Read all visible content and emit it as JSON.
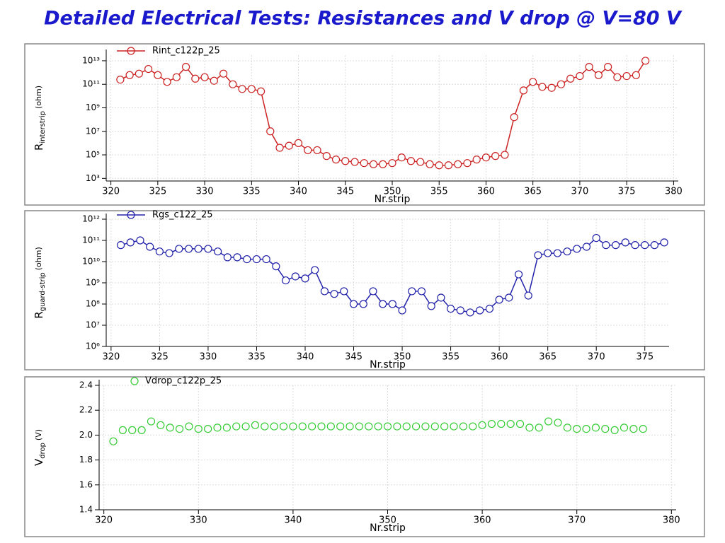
{
  "title": "Detailed Electrical Tests: Resistances and V drop @ V=80 V",
  "chart_data": [
    {
      "type": "line",
      "log": true,
      "grid": true,
      "legend": "top-left",
      "marker": "circle",
      "x_label": "Nr.strip",
      "y_label": "R",
      "y_label_sub": "interstrip",
      "y_label_unit": "(ohm)",
      "xlim": [
        319.5,
        380.5
      ],
      "xticks": [
        320,
        325,
        330,
        335,
        340,
        345,
        350,
        355,
        360,
        365,
        370,
        375,
        380
      ],
      "ylim": [
        600,
        30000000000000
      ],
      "yticks": [
        {
          "value": 1000,
          "label": "10³"
        },
        {
          "value": 100000,
          "label": "10⁵"
        },
        {
          "value": 10000000,
          "label": "10⁷"
        },
        {
          "value": 1000000000,
          "label": "10⁹"
        },
        {
          "value": 100000000000,
          "label": "10¹¹"
        },
        {
          "value": 10000000000000,
          "label": "10¹³"
        }
      ],
      "x": [
        321,
        322,
        323,
        324,
        325,
        326,
        327,
        328,
        329,
        330,
        331,
        332,
        333,
        334,
        335,
        336,
        337,
        338,
        339,
        340,
        341,
        342,
        343,
        344,
        345,
        346,
        347,
        348,
        349,
        350,
        351,
        352,
        353,
        354,
        355,
        356,
        357,
        358,
        359,
        360,
        361,
        362,
        363,
        364,
        365,
        366,
        367,
        368,
        369,
        370,
        371,
        372,
        373,
        374,
        375,
        376,
        377
      ],
      "series": [
        {
          "name": "Rint_c122p_25",
          "color": "#cc2222",
          "values": [
            250000000000.0,
            600000000000.0,
            800000000000.0,
            2000000000000.0,
            600000000000.0,
            160000000000.0,
            400000000000.0,
            3000000000000.0,
            300000000000.0,
            400000000000.0,
            200000000000.0,
            800000000000.0,
            100000000000.0,
            40000000000.0,
            40000000000.0,
            25000000000.0,
            10000000.0,
            400000.0,
            600000.0,
            1000000.0,
            250000.0,
            250000.0,
            80000.0,
            40000.0,
            30000.0,
            25000.0,
            20000.0,
            16000.0,
            16000.0,
            20000.0,
            60000.0,
            30000.0,
            25000.0,
            16000.0,
            13000.0,
            13000.0,
            16000.0,
            20000.0,
            40000.0,
            60000.0,
            80000.0,
            100000.0,
            160000000.0,
            30000000000.0,
            160000000000.0,
            60000000000.0,
            50000000000.0,
            100000000000.0,
            300000000000.0,
            500000000000.0,
            3000000000000.0,
            600000000000.0,
            3000000000000.0,
            400000000000.0,
            500000000000.0,
            600000000000.0,
            10000000000000.0
          ]
        }
      ]
    },
    {
      "type": "line",
      "log": true,
      "grid": true,
      "legend": "top-left",
      "marker": "circle",
      "x_label": "Nr.strip",
      "y_label": "R",
      "y_label_sub": "guard-strip",
      "y_label_unit": "(ohm)",
      "xlim": [
        319.5,
        377.5
      ],
      "xticks": [
        320,
        325,
        330,
        335,
        340,
        345,
        350,
        355,
        360,
        365,
        370,
        375
      ],
      "ylim": [
        1000000,
        1000000000000
      ],
      "yticks": [
        {
          "value": 1000000,
          "label": "10⁶"
        },
        {
          "value": 10000000,
          "label": "10⁷"
        },
        {
          "value": 100000000,
          "label": "10⁸"
        },
        {
          "value": 1000000000,
          "label": "10⁹"
        },
        {
          "value": 10000000000,
          "label": "10¹⁰"
        },
        {
          "value": 100000000000,
          "label": "10¹¹"
        },
        {
          "value": 1000000000000,
          "label": "10¹²"
        }
      ],
      "x": [
        321,
        322,
        323,
        324,
        325,
        326,
        327,
        328,
        329,
        330,
        331,
        332,
        333,
        334,
        335,
        336,
        337,
        338,
        339,
        340,
        341,
        342,
        343,
        344,
        345,
        346,
        347,
        348,
        349,
        350,
        351,
        352,
        353,
        354,
        355,
        356,
        357,
        358,
        359,
        360,
        361,
        362,
        363,
        364,
        365,
        366,
        367,
        368,
        369,
        370,
        371,
        372,
        373,
        374,
        375,
        376,
        377
      ],
      "series": [
        {
          "name": "Rgs_c122_25",
          "color": "#2222aa",
          "values": [
            60000000000.0,
            80000000000.0,
            100000000000.0,
            50000000000.0,
            30000000000.0,
            25000000000.0,
            40000000000.0,
            40000000000.0,
            40000000000.0,
            40000000000.0,
            30000000000.0,
            16000000000.0,
            16000000000.0,
            13000000000.0,
            13000000000.0,
            13000000000.0,
            6000000000.0,
            1300000000.0,
            2000000000.0,
            1600000000.0,
            4000000000.0,
            400000000.0,
            300000000.0,
            400000000.0,
            100000000.0,
            100000000.0,
            400000000.0,
            100000000.0,
            100000000.0,
            50000000.0,
            400000000.0,
            400000000.0,
            80000000.0,
            200000000.0,
            60000000.0,
            50000000.0,
            40000000.0,
            50000000.0,
            60000000.0,
            160000000.0,
            200000000.0,
            2500000000.0,
            250000000.0,
            20000000000.0,
            25000000000.0,
            25000000000.0,
            30000000000.0,
            40000000000.0,
            50000000000.0,
            130000000000.0,
            60000000000.0,
            60000000000.0,
            80000000000.0,
            60000000000.0,
            60000000000.0,
            60000000000.0,
            80000000000.0
          ]
        }
      ]
    },
    {
      "type": "scatter",
      "log": false,
      "grid": true,
      "legend": "top-left",
      "marker": "circle",
      "x_label": "Nr.strip",
      "y_label": "V",
      "y_label_sub": "drop",
      "y_label_unit": "(V)",
      "xlim": [
        319.5,
        380.5
      ],
      "xticks": [
        320,
        330,
        340,
        350,
        360,
        370,
        380
      ],
      "ylim": [
        1.4,
        2.4
      ],
      "yticks": [
        1.4,
        1.6,
        1.8,
        {
          "value": 2,
          "label": "2.0"
        },
        2.2,
        2.4
      ],
      "x": [
        321,
        322,
        323,
        324,
        325,
        326,
        327,
        328,
        329,
        330,
        331,
        332,
        333,
        334,
        335,
        336,
        337,
        338,
        339,
        340,
        341,
        342,
        343,
        344,
        345,
        346,
        347,
        348,
        349,
        350,
        351,
        352,
        353,
        354,
        355,
        356,
        357,
        358,
        359,
        360,
        361,
        362,
        363,
        364,
        365,
        366,
        367,
        368,
        369,
        370,
        371,
        372,
        373,
        374,
        375,
        376,
        377
      ],
      "series": [
        {
          "name": "Vdrop_c122p_25",
          "color": "#33cc33",
          "values": [
            1.95,
            2.04,
            2.04,
            2.04,
            2.11,
            2.08,
            2.06,
            2.05,
            2.07,
            2.05,
            2.05,
            2.06,
            2.06,
            2.07,
            2.07,
            2.08,
            2.07,
            2.07,
            2.07,
            2.07,
            2.07,
            2.07,
            2.07,
            2.07,
            2.07,
            2.07,
            2.07,
            2.07,
            2.07,
            2.07,
            2.07,
            2.07,
            2.07,
            2.07,
            2.07,
            2.07,
            2.07,
            2.07,
            2.07,
            2.08,
            2.09,
            2.09,
            2.09,
            2.09,
            2.06,
            2.06,
            2.11,
            2.1,
            2.06,
            2.05,
            2.05,
            2.06,
            2.05,
            2.04,
            2.06,
            2.05,
            2.05
          ]
        }
      ]
    }
  ]
}
